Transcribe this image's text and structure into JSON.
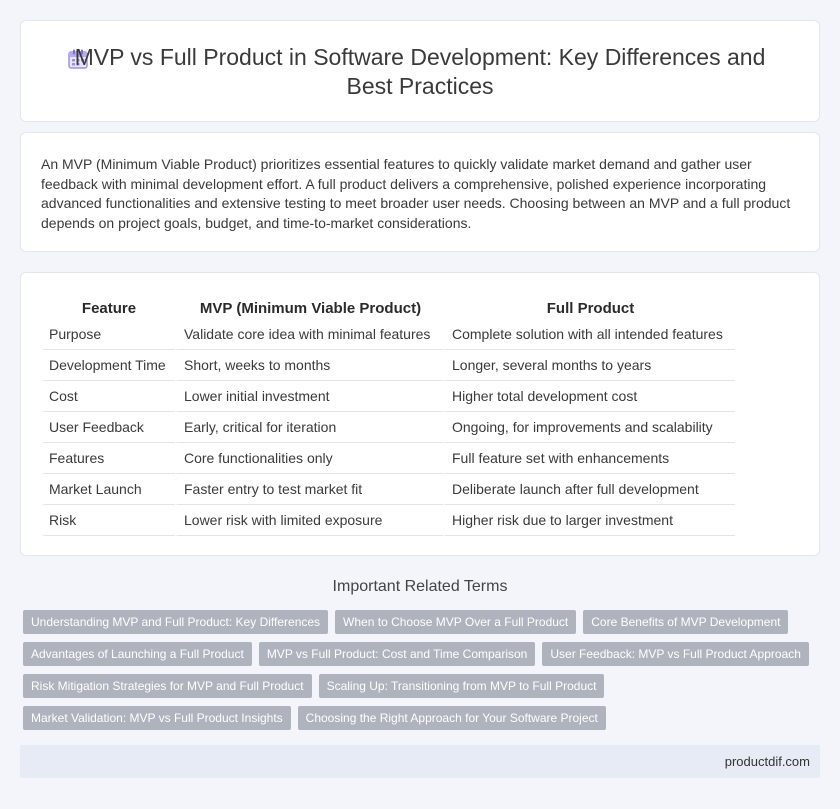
{
  "header": {
    "icon": "calendar-icon",
    "title": "MVP vs Full Product in Software Development: Key Differences and Best Practices"
  },
  "intro": {
    "text": "An MVP (Minimum Viable Product) prioritizes essential features to quickly validate market demand and gather user feedback with minimal development effort. A full product delivers a comprehensive, polished experience incorporating advanced functionalities and extensive testing to meet broader user needs. Choosing between an MVP and a full product depends on project goals, budget, and time-to-market considerations."
  },
  "table": {
    "headers": [
      "Feature",
      "MVP (Minimum Viable Product)",
      "Full Product"
    ],
    "rows": [
      [
        "Purpose",
        "Validate core idea with minimal features",
        "Complete solution with all intended features"
      ],
      [
        "Development Time",
        "Short, weeks to months",
        "Longer, several months to years"
      ],
      [
        "Cost",
        "Lower initial investment",
        "Higher total development cost"
      ],
      [
        "User Feedback",
        "Early, critical for iteration",
        "Ongoing, for improvements and scalability"
      ],
      [
        "Features",
        "Core functionalities only",
        "Full feature set with enhancements"
      ],
      [
        "Market Launch",
        "Faster entry to test market fit",
        "Deliberate launch after full development"
      ],
      [
        "Risk",
        "Lower risk with limited exposure",
        "Higher risk due to larger investment"
      ]
    ]
  },
  "related": {
    "title": "Important Related Terms",
    "tags": [
      [
        "Understanding MVP and Full Product: Key Differences",
        "When to Choose MVP Over a Full Product",
        "Core Benefits of MVP Development"
      ],
      [
        "Advantages of Launching a Full Product",
        "MVP vs Full Product: Cost and Time Comparison",
        "User Feedback: MVP vs Full Product Approach"
      ],
      [
        "Risk Mitigation Strategies for MVP and Full Product",
        "Scaling Up: Transitioning from MVP to Full Product"
      ],
      [
        "Market Validation: MVP vs Full Product Insights",
        "Choosing the Right Approach for Your Software Project"
      ]
    ]
  },
  "footer": {
    "site": "productdif.com"
  },
  "colors": {
    "background": "#f3f5fa",
    "tag": "#aeb3bd",
    "footer": "#e6ebf5",
    "icon_accent": "#8b7fd6"
  }
}
